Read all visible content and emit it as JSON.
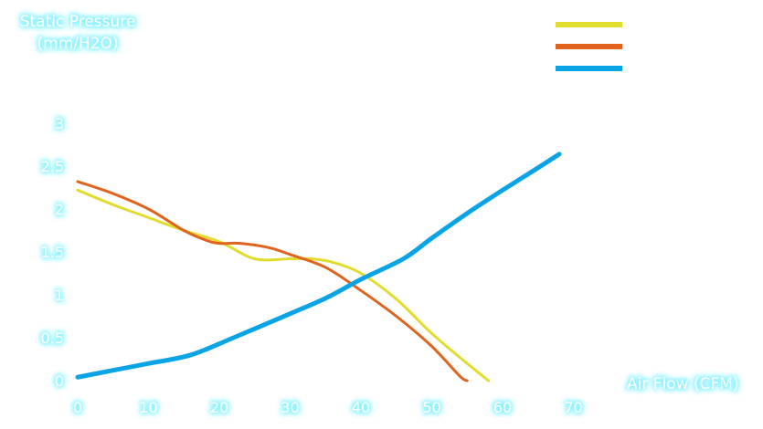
{
  "chart_data": {
    "type": "line",
    "ylabel_lines": [
      "Static Pressure",
      "(mm/H2O)"
    ],
    "xlabel": "Air Flow (CFM)",
    "xlim": [
      0,
      75
    ],
    "ylim": [
      0,
      3.5
    ],
    "xticks": [
      "0",
      "10",
      "20",
      "30",
      "40",
      "50",
      "60",
      "70"
    ],
    "yticks": [
      "0",
      "0.5",
      "1",
      "1.5",
      "2",
      "2.5",
      "3"
    ],
    "grid": false,
    "legend_position": "top-right",
    "series": [
      {
        "color": "#e2dc2e",
        "points": [
          [
            0,
            2.22
          ],
          [
            5,
            2.05
          ],
          [
            10,
            1.9
          ],
          [
            15,
            1.75
          ],
          [
            20,
            1.62
          ],
          [
            25,
            1.42
          ],
          [
            30,
            1.42
          ],
          [
            33,
            1.42
          ],
          [
            36,
            1.38
          ],
          [
            40,
            1.25
          ],
          [
            45,
            0.95
          ],
          [
            50,
            0.55
          ],
          [
            55,
            0.2
          ],
          [
            58,
            0
          ]
        ]
      },
      {
        "color": "#e0631e",
        "points": [
          [
            0,
            2.32
          ],
          [
            5,
            2.18
          ],
          [
            10,
            2.0
          ],
          [
            15,
            1.75
          ],
          [
            18,
            1.64
          ],
          [
            20,
            1.6
          ],
          [
            23,
            1.6
          ],
          [
            27,
            1.55
          ],
          [
            30,
            1.47
          ],
          [
            35,
            1.32
          ],
          [
            40,
            1.05
          ],
          [
            45,
            0.75
          ],
          [
            50,
            0.4
          ],
          [
            54,
            0.05
          ],
          [
            55,
            0
          ]
        ]
      },
      {
        "color": "#0aa4e6",
        "points": [
          [
            0,
            0.04
          ],
          [
            5,
            0.12
          ],
          [
            10,
            0.2
          ],
          [
            16,
            0.3
          ],
          [
            22,
            0.5
          ],
          [
            30,
            0.78
          ],
          [
            35,
            0.96
          ],
          [
            40,
            1.18
          ],
          [
            46,
            1.42
          ],
          [
            50,
            1.66
          ],
          [
            55,
            1.95
          ],
          [
            60,
            2.22
          ],
          [
            65,
            2.48
          ],
          [
            68,
            2.64
          ]
        ]
      }
    ]
  }
}
